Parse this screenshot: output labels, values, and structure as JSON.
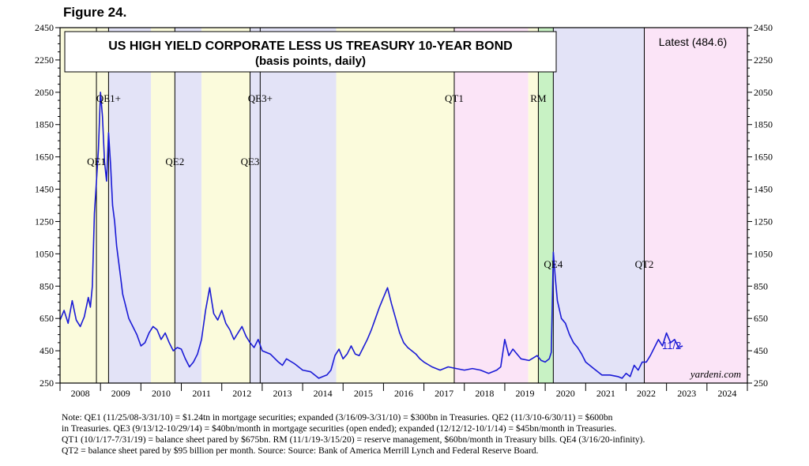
{
  "figure_label": "Figure 24.",
  "chart_data": {
    "type": "line",
    "title": "US HIGH YIELD CORPORATE LESS US TREASURY 10-YEAR BOND",
    "subtitle": "(basis points, daily)",
    "latest_label": "Latest (484.6)",
    "end_label": "11/2",
    "source_mark": "yardeni.com",
    "ylim": [
      250,
      2450
    ],
    "yticks": [
      250,
      450,
      650,
      850,
      1050,
      1250,
      1450,
      1650,
      1850,
      2050,
      2250,
      2450
    ],
    "xlim": [
      2008.0,
      2025.0
    ],
    "year_labels": [
      "2008",
      "2009",
      "2010",
      "2011",
      "2012",
      "2013",
      "2014",
      "2015",
      "2016",
      "2017",
      "2018",
      "2019",
      "2020",
      "2021",
      "2022",
      "2023",
      "2024"
    ],
    "regions": [
      {
        "start": 2008.0,
        "end": 2008.9,
        "color": "#fbfbdc"
      },
      {
        "start": 2008.9,
        "end": 2009.2,
        "color": "#fbfbdc"
      },
      {
        "start": 2009.2,
        "end": 2010.25,
        "color": "#e3e3f7"
      },
      {
        "start": 2010.25,
        "end": 2010.84,
        "color": "#fbfbdc"
      },
      {
        "start": 2010.84,
        "end": 2011.5,
        "color": "#e3e3f7"
      },
      {
        "start": 2011.5,
        "end": 2012.7,
        "color": "#fbfbdc"
      },
      {
        "start": 2012.7,
        "end": 2012.95,
        "color": "#e3e3f7"
      },
      {
        "start": 2012.95,
        "end": 2014.83,
        "color": "#e3e3f7"
      },
      {
        "start": 2014.83,
        "end": 2017.75,
        "color": "#fbfbdc"
      },
      {
        "start": 2017.75,
        "end": 2019.58,
        "color": "#fbe4f7"
      },
      {
        "start": 2019.58,
        "end": 2019.83,
        "color": "#fbfbdc"
      },
      {
        "start": 2019.83,
        "end": 2020.2,
        "color": "#c8f2c4"
      },
      {
        "start": 2020.2,
        "end": 2022.45,
        "color": "#e3e3f7"
      },
      {
        "start": 2022.45,
        "end": 2025.0,
        "color": "#fbe4f7"
      }
    ],
    "event_lines": [
      2008.9,
      2009.2,
      2010.84,
      2012.7,
      2012.95,
      2017.75,
      2019.83,
      2020.2,
      2022.45
    ],
    "events": [
      {
        "label": "QE1",
        "x": 2008.9,
        "y": 1600
      },
      {
        "label": "QE1+",
        "x": 2009.2,
        "y": 1990
      },
      {
        "label": "QE2",
        "x": 2010.84,
        "y": 1600
      },
      {
        "label": "QE3",
        "x": 2012.7,
        "y": 1600
      },
      {
        "label": "QE3+",
        "x": 2012.95,
        "y": 1990
      },
      {
        "label": "QT1",
        "x": 2017.75,
        "y": 1990
      },
      {
        "label": "RM",
        "x": 2019.83,
        "y": 1990
      },
      {
        "label": "QE4",
        "x": 2020.2,
        "y": 965
      },
      {
        "label": "QT2",
        "x": 2022.45,
        "y": 965
      }
    ],
    "series": [
      {
        "name": "US High Yield less US Treasury 10-Year (bp)",
        "color": "#1a1ad6",
        "x": [
          2008.0,
          2008.1,
          2008.2,
          2008.3,
          2008.4,
          2008.5,
          2008.6,
          2008.7,
          2008.75,
          2008.8,
          2008.85,
          2008.9,
          2008.95,
          2009.0,
          2009.05,
          2009.1,
          2009.15,
          2009.2,
          2009.25,
          2009.3,
          2009.35,
          2009.4,
          2009.45,
          2009.5,
          2009.55,
          2009.6,
          2009.7,
          2009.8,
          2009.9,
          2010.0,
          2010.1,
          2010.2,
          2010.3,
          2010.4,
          2010.5,
          2010.6,
          2010.7,
          2010.8,
          2010.9,
          2011.0,
          2011.1,
          2011.2,
          2011.3,
          2011.4,
          2011.5,
          2011.6,
          2011.7,
          2011.75,
          2011.8,
          2011.9,
          2012.0,
          2012.1,
          2012.2,
          2012.3,
          2012.4,
          2012.5,
          2012.6,
          2012.7,
          2012.8,
          2012.9,
          2013.0,
          2013.2,
          2013.4,
          2013.5,
          2013.6,
          2013.8,
          2014.0,
          2014.2,
          2014.4,
          2014.5,
          2014.6,
          2014.7,
          2014.8,
          2014.9,
          2015.0,
          2015.1,
          2015.2,
          2015.3,
          2015.4,
          2015.5,
          2015.6,
          2015.7,
          2015.8,
          2015.9,
          2016.0,
          2016.1,
          2016.2,
          2016.3,
          2016.4,
          2016.5,
          2016.6,
          2016.7,
          2016.8,
          2016.9,
          2017.0,
          2017.2,
          2017.4,
          2017.6,
          2017.8,
          2018.0,
          2018.2,
          2018.4,
          2018.6,
          2018.8,
          2018.9,
          2019.0,
          2019.1,
          2019.2,
          2019.4,
          2019.6,
          2019.8,
          2019.9,
          2020.0,
          2020.1,
          2020.15,
          2020.2,
          2020.25,
          2020.3,
          2020.4,
          2020.5,
          2020.6,
          2020.7,
          2020.8,
          2020.9,
          2021.0,
          2021.2,
          2021.4,
          2021.6,
          2021.8,
          2021.9,
          2022.0,
          2022.1,
          2022.2,
          2022.3,
          2022.4,
          2022.5,
          2022.6,
          2022.7,
          2022.8,
          2022.9,
          2023.0,
          2023.1,
          2023.2,
          2023.3,
          2023.4
        ],
        "values": [
          640,
          700,
          620,
          760,
          640,
          600,
          660,
          780,
          720,
          850,
          1300,
          1500,
          1700,
          2050,
          1900,
          1620,
          1500,
          1800,
          1600,
          1350,
          1250,
          1100,
          1000,
          900,
          800,
          750,
          650,
          600,
          550,
          480,
          500,
          560,
          600,
          580,
          520,
          560,
          500,
          450,
          470,
          460,
          400,
          350,
          380,
          430,
          520,
          700,
          840,
          760,
          680,
          640,
          700,
          620,
          580,
          520,
          560,
          600,
          540,
          500,
          470,
          520,
          450,
          430,
          380,
          360,
          400,
          370,
          330,
          320,
          280,
          290,
          300,
          330,
          420,
          460,
          400,
          430,
          480,
          430,
          420,
          470,
          520,
          580,
          650,
          720,
          780,
          840,
          740,
          650,
          560,
          500,
          470,
          450,
          430,
          400,
          380,
          350,
          330,
          350,
          340,
          330,
          340,
          330,
          310,
          330,
          350,
          520,
          420,
          460,
          400,
          390,
          420,
          390,
          380,
          400,
          440,
          1060,
          900,
          760,
          650,
          620,
          550,
          500,
          470,
          430,
          380,
          340,
          300,
          300,
          290,
          280,
          310,
          290,
          360,
          330,
          380,
          380,
          420,
          470,
          520,
          480,
          560,
          500,
          520,
          470,
          480
        ]
      }
    ]
  },
  "note_lines": [
    "Note: QE1 (11/25/08-3/31/10) = $1.24tn in mortgage securities; expanded (3/16/09-3/31/10) = $300bn in Treasuries. QE2 (11/3/10-6/30/11) = $600bn",
    "in Treasuries. QE3 (9/13/12-10/29/14) = $40bn/month in mortgage securities (open ended); expanded (12/12/12-10/1/14) = $45bn/month in Treasuries.",
    "QT1 (10/1/17-7/31/19) = balance sheet pared by $675bn. RM (11/1/19-3/15/20) = reserve management, $60bn/month in Treasury bills. QE4 (3/16/20-infinity).",
    "QT2 = balance sheet pared by $95 billion per month. Source: Source: Bank of America Merrill Lynch and Federal Reserve Board."
  ]
}
